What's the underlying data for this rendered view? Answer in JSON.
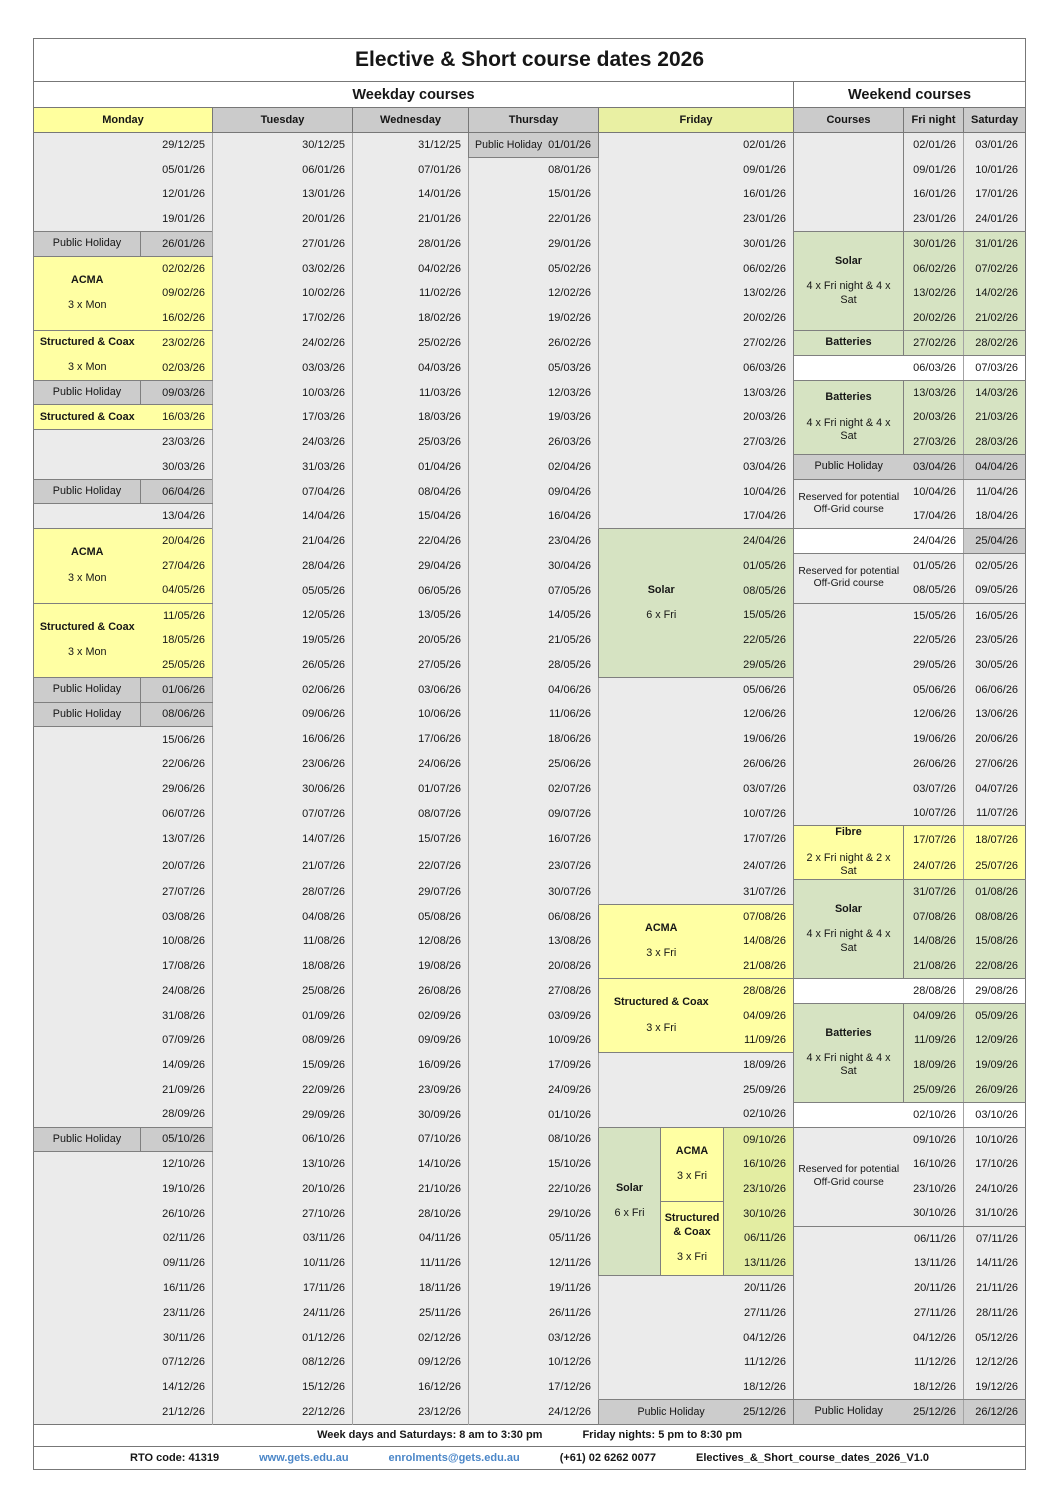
{
  "title": "Elective & Short course dates 2026",
  "sections": {
    "weekday": "Weekday courses",
    "weekend": "Weekend courses"
  },
  "day_headers": [
    "Monday",
    "Tuesday",
    "Wednesday",
    "Thursday",
    "Friday",
    "Courses",
    "Fri night",
    "Saturday"
  ],
  "rows": [
    [
      "29/12/25",
      "30/12/25",
      "31/12/25",
      "01/01/26",
      "02/01/26",
      "02/01/26",
      "03/01/26"
    ],
    [
      "05/01/26",
      "06/01/26",
      "07/01/26",
      "08/01/26",
      "09/01/26",
      "09/01/26",
      "10/01/26"
    ],
    [
      "12/01/26",
      "13/01/26",
      "14/01/26",
      "15/01/26",
      "16/01/26",
      "16/01/26",
      "17/01/26"
    ],
    [
      "19/01/26",
      "20/01/26",
      "21/01/26",
      "22/01/26",
      "23/01/26",
      "23/01/26",
      "24/01/26"
    ],
    [
      "26/01/26",
      "27/01/26",
      "28/01/26",
      "29/01/26",
      "30/01/26",
      "30/01/26",
      "31/01/26"
    ],
    [
      "02/02/26",
      "03/02/26",
      "04/02/26",
      "05/02/26",
      "06/02/26",
      "06/02/26",
      "07/02/26"
    ],
    [
      "09/02/26",
      "10/02/26",
      "11/02/26",
      "12/02/26",
      "13/02/26",
      "13/02/26",
      "14/02/26"
    ],
    [
      "16/02/26",
      "17/02/26",
      "18/02/26",
      "19/02/26",
      "20/02/26",
      "20/02/26",
      "21/02/26"
    ],
    [
      "23/02/26",
      "24/02/26",
      "25/02/26",
      "26/02/26",
      "27/02/26",
      "27/02/26",
      "28/02/26"
    ],
    [
      "02/03/26",
      "03/03/26",
      "04/03/26",
      "05/03/26",
      "06/03/26",
      "06/03/26",
      "07/03/26"
    ],
    [
      "09/03/26",
      "10/03/26",
      "11/03/26",
      "12/03/26",
      "13/03/26",
      "13/03/26",
      "14/03/26"
    ],
    [
      "16/03/26",
      "17/03/26",
      "18/03/26",
      "19/03/26",
      "20/03/26",
      "20/03/26",
      "21/03/26"
    ],
    [
      "23/03/26",
      "24/03/26",
      "25/03/26",
      "26/03/26",
      "27/03/26",
      "27/03/26",
      "28/03/26"
    ],
    [
      "30/03/26",
      "31/03/26",
      "01/04/26",
      "02/04/26",
      "03/04/26",
      "03/04/26",
      "04/04/26"
    ],
    [
      "06/04/26",
      "07/04/26",
      "08/04/26",
      "09/04/26",
      "10/04/26",
      "10/04/26",
      "11/04/26"
    ],
    [
      "13/04/26",
      "14/04/26",
      "15/04/26",
      "16/04/26",
      "17/04/26",
      "17/04/26",
      "18/04/26"
    ],
    [
      "20/04/26",
      "21/04/26",
      "22/04/26",
      "23/04/26",
      "24/04/26",
      "24/04/26",
      "25/04/26"
    ],
    [
      "27/04/26",
      "28/04/26",
      "29/04/26",
      "30/04/26",
      "01/05/26",
      "01/05/26",
      "02/05/26"
    ],
    [
      "04/05/26",
      "05/05/26",
      "06/05/26",
      "07/05/26",
      "08/05/26",
      "08/05/26",
      "09/05/26"
    ],
    [
      "11/05/26",
      "12/05/26",
      "13/05/26",
      "14/05/26",
      "15/05/26",
      "15/05/26",
      "16/05/26"
    ],
    [
      "18/05/26",
      "19/05/26",
      "20/05/26",
      "21/05/26",
      "22/05/26",
      "22/05/26",
      "23/05/26"
    ],
    [
      "25/05/26",
      "26/05/26",
      "27/05/26",
      "28/05/26",
      "29/05/26",
      "29/05/26",
      "30/05/26"
    ],
    [
      "01/06/26",
      "02/06/26",
      "03/06/26",
      "04/06/26",
      "05/06/26",
      "05/06/26",
      "06/06/26"
    ],
    [
      "08/06/26",
      "09/06/26",
      "10/06/26",
      "11/06/26",
      "12/06/26",
      "12/06/26",
      "13/06/26"
    ],
    [
      "15/06/26",
      "16/06/26",
      "17/06/26",
      "18/06/26",
      "19/06/26",
      "19/06/26",
      "20/06/26"
    ],
    [
      "22/06/26",
      "23/06/26",
      "24/06/26",
      "25/06/26",
      "26/06/26",
      "26/06/26",
      "27/06/26"
    ],
    [
      "29/06/26",
      "30/06/26",
      "01/07/26",
      "02/07/26",
      "03/07/26",
      "03/07/26",
      "04/07/26"
    ],
    [
      "06/07/26",
      "07/07/26",
      "08/07/26",
      "09/07/26",
      "10/07/26",
      "10/07/26",
      "11/07/26"
    ],
    [
      "13/07/26",
      "14/07/26",
      "15/07/26",
      "16/07/26",
      "17/07/26",
      "17/07/26",
      "18/07/26"
    ],
    [
      "20/07/26",
      "21/07/26",
      "22/07/26",
      "23/07/26",
      "24/07/26",
      "24/07/26",
      "25/07/26"
    ],
    [
      "27/07/26",
      "28/07/26",
      "29/07/26",
      "30/07/26",
      "31/07/26",
      "31/07/26",
      "01/08/26"
    ],
    [
      "03/08/26",
      "04/08/26",
      "05/08/26",
      "06/08/26",
      "07/08/26",
      "07/08/26",
      "08/08/26"
    ],
    [
      "10/08/26",
      "11/08/26",
      "12/08/26",
      "13/08/26",
      "14/08/26",
      "14/08/26",
      "15/08/26"
    ],
    [
      "17/08/26",
      "18/08/26",
      "19/08/26",
      "20/08/26",
      "21/08/26",
      "21/08/26",
      "22/08/26"
    ],
    [
      "24/08/26",
      "25/08/26",
      "26/08/26",
      "27/08/26",
      "28/08/26",
      "28/08/26",
      "29/08/26"
    ],
    [
      "31/08/26",
      "01/09/26",
      "02/09/26",
      "03/09/26",
      "04/09/26",
      "04/09/26",
      "05/09/26"
    ],
    [
      "07/09/26",
      "08/09/26",
      "09/09/26",
      "10/09/26",
      "11/09/26",
      "11/09/26",
      "12/09/26"
    ],
    [
      "14/09/26",
      "15/09/26",
      "16/09/26",
      "17/09/26",
      "18/09/26",
      "18/09/26",
      "19/09/26"
    ],
    [
      "21/09/26",
      "22/09/26",
      "23/09/26",
      "24/09/26",
      "25/09/26",
      "25/09/26",
      "26/09/26"
    ],
    [
      "28/09/26",
      "29/09/26",
      "30/09/26",
      "01/10/26",
      "02/10/26",
      "02/10/26",
      "03/10/26"
    ],
    [
      "05/10/26",
      "06/10/26",
      "07/10/26",
      "08/10/26",
      "09/10/26",
      "09/10/26",
      "10/10/26"
    ],
    [
      "12/10/26",
      "13/10/26",
      "14/10/26",
      "15/10/26",
      "16/10/26",
      "16/10/26",
      "17/10/26"
    ],
    [
      "19/10/26",
      "20/10/26",
      "21/10/26",
      "22/10/26",
      "23/10/26",
      "23/10/26",
      "24/10/26"
    ],
    [
      "26/10/26",
      "27/10/26",
      "28/10/26",
      "29/10/26",
      "30/10/26",
      "30/10/26",
      "31/10/26"
    ],
    [
      "02/11/26",
      "03/11/26",
      "04/11/26",
      "05/11/26",
      "06/11/26",
      "06/11/26",
      "07/11/26"
    ],
    [
      "09/11/26",
      "10/11/26",
      "11/11/26",
      "12/11/26",
      "13/11/26",
      "13/11/26",
      "14/11/26"
    ],
    [
      "16/11/26",
      "17/11/26",
      "18/11/26",
      "19/11/26",
      "20/11/26",
      "20/11/26",
      "21/11/26"
    ],
    [
      "23/11/26",
      "24/11/26",
      "25/11/26",
      "26/11/26",
      "27/11/26",
      "27/11/26",
      "28/11/26"
    ],
    [
      "30/11/26",
      "01/12/26",
      "02/12/26",
      "03/12/26",
      "04/12/26",
      "04/12/26",
      "05/12/26"
    ],
    [
      "07/12/26",
      "08/12/26",
      "09/12/26",
      "10/12/26",
      "11/12/26",
      "11/12/26",
      "12/12/26"
    ],
    [
      "14/12/26",
      "15/12/26",
      "16/12/26",
      "17/12/26",
      "18/12/26",
      "18/12/26",
      "19/12/26"
    ],
    [
      "21/12/26",
      "22/12/26",
      "23/12/26",
      "24/12/26",
      "25/12/26",
      "25/12/26",
      "26/12/26"
    ]
  ],
  "monday_blocks": [
    {
      "start": 5,
      "span": 1,
      "style": "holiday",
      "lines": [
        "Public Holiday"
      ]
    },
    {
      "start": 6,
      "span": 3,
      "style": "yellow",
      "lines": [
        "ACMA",
        "3 x Mon"
      ]
    },
    {
      "start": 9,
      "span": 2,
      "style": "yellow",
      "lines": [
        "Structured & Coax",
        "3 x Mon"
      ]
    },
    {
      "start": 11,
      "span": 1,
      "style": "holiday",
      "lines": [
        "Public Holiday"
      ]
    },
    {
      "start": 12,
      "span": 1,
      "style": "yellow",
      "lines": [
        "Structured & Coax"
      ]
    },
    {
      "start": 15,
      "span": 1,
      "style": "holiday",
      "lines": [
        "Public Holiday"
      ]
    },
    {
      "start": 17,
      "span": 3,
      "style": "yellow",
      "lines": [
        "ACMA",
        "3 x Mon"
      ]
    },
    {
      "start": 20,
      "span": 3,
      "style": "yellow",
      "lines": [
        "Structured & Coax",
        "3 x Mon"
      ]
    },
    {
      "start": 23,
      "span": 1,
      "style": "holiday",
      "lines": [
        "Public Holiday"
      ]
    },
    {
      "start": 24,
      "span": 1,
      "style": "holiday",
      "lines": [
        "Public Holiday"
      ]
    },
    {
      "start": 41,
      "span": 1,
      "style": "holiday",
      "lines": [
        "Public Holiday"
      ]
    }
  ],
  "thursday_blocks": [
    {
      "start": 1,
      "span": 1,
      "style": "holiday",
      "lines": [
        "Public Holiday"
      ]
    }
  ],
  "friday_blocks": [
    {
      "start": 17,
      "span": 6,
      "style": "green",
      "layout": "full",
      "lines": [
        "Solar",
        "6 x Fri"
      ]
    },
    {
      "start": 32,
      "span": 3,
      "style": "yellow",
      "layout": "full",
      "lines": [
        "ACMA",
        "3 x Fri"
      ]
    },
    {
      "start": 35,
      "span": 3,
      "style": "yellow",
      "layout": "full",
      "lines": [
        "Structured & Coax",
        "3 x Fri"
      ]
    },
    {
      "start": 41,
      "span": 6,
      "style": "green",
      "layout": "left",
      "lines": [
        "Solar",
        "6 x Fri"
      ]
    },
    {
      "start": 41,
      "span": 3,
      "style": "yellow",
      "layout": "mid",
      "lines": [
        "ACMA",
        "3 x Fri"
      ]
    },
    {
      "start": 44,
      "span": 3,
      "style": "yellow",
      "layout": "mid",
      "lines": [
        "Structured & Coax",
        "3 x Fri"
      ]
    },
    {
      "start": 52,
      "span": 1,
      "style": "holiday",
      "layout": "inline",
      "lines": [
        "Public Holiday"
      ]
    }
  ],
  "weekend_blocks": [
    {
      "start": 1,
      "span": 4,
      "style": "gray",
      "lines": []
    },
    {
      "start": 5,
      "span": 4,
      "style": "green",
      "lines": [
        "Solar",
        "4 x Fri night & 4 x Sat"
      ]
    },
    {
      "start": 9,
      "span": 1,
      "style": "green",
      "lines": [
        "Batteries"
      ]
    },
    {
      "start": 10,
      "span": 1,
      "style": "white",
      "lines": []
    },
    {
      "start": 11,
      "span": 3,
      "style": "green",
      "lines": [
        "Batteries",
        "4 x Fri night & 4 x Sat"
      ]
    },
    {
      "start": 14,
      "span": 1,
      "style": "holiday",
      "lines": [
        "Public Holiday"
      ]
    },
    {
      "start": 15,
      "span": 2,
      "style": "reserved",
      "lines": [
        "Reserved for potential Off-Grid course"
      ]
    },
    {
      "start": 17,
      "span": 1,
      "style": "white",
      "lines": []
    },
    {
      "start": 18,
      "span": 2,
      "style": "reserved",
      "lines": [
        "Reserved for potential Off-Grid course"
      ]
    },
    {
      "start": 20,
      "span": 9,
      "style": "gray",
      "lines": []
    },
    {
      "start": 29,
      "span": 2,
      "style": "yellow",
      "lines": [
        "Fibre",
        "2 x Fri night & 2 x Sat"
      ]
    },
    {
      "start": 31,
      "span": 4,
      "style": "green",
      "lines": [
        "Solar",
        "4 x Fri night & 4 x Sat"
      ]
    },
    {
      "start": 35,
      "span": 1,
      "style": "white",
      "lines": []
    },
    {
      "start": 36,
      "span": 4,
      "style": "green",
      "lines": [
        "Batteries",
        "4 x Fri night & 4 x Sat"
      ]
    },
    {
      "start": 40,
      "span": 1,
      "style": "white",
      "lines": []
    },
    {
      "start": 41,
      "span": 4,
      "style": "reserved",
      "lines": [
        "Reserved for potential Off-Grid course"
      ]
    },
    {
      "start": 45,
      "span": 7,
      "style": "gray",
      "lines": []
    },
    {
      "start": 52,
      "span": 1,
      "style": "holiday",
      "lines": [
        "Public Holiday"
      ]
    }
  ],
  "sat_holiday_rows": [
    17
  ],
  "footer": {
    "hours_weekday": "Week days and Saturdays: 8 am to 3:30 pm",
    "hours_friday": "Friday nights: 5 pm to 8:30 pm",
    "rto": "RTO code: 41319",
    "website": "www.gets.edu.au",
    "email": "enrolments@gets.edu.au",
    "phone": "(+61) 02 6262 0077",
    "filename": "Electives_&_Short_course_dates_2026_V1.0"
  },
  "colors": {
    "monday_header": "#ffff9e",
    "friday_header": "#e9f0a3",
    "header_gray": "#cbcbcb",
    "holiday_gray": "#cccccc",
    "course_yellow": "#ffffa3",
    "course_green": "#d6e3c2",
    "friday_split_dates": "#e3eda2",
    "cell_gray": "#ebebeb",
    "link_blue": "#4a86c8"
  }
}
